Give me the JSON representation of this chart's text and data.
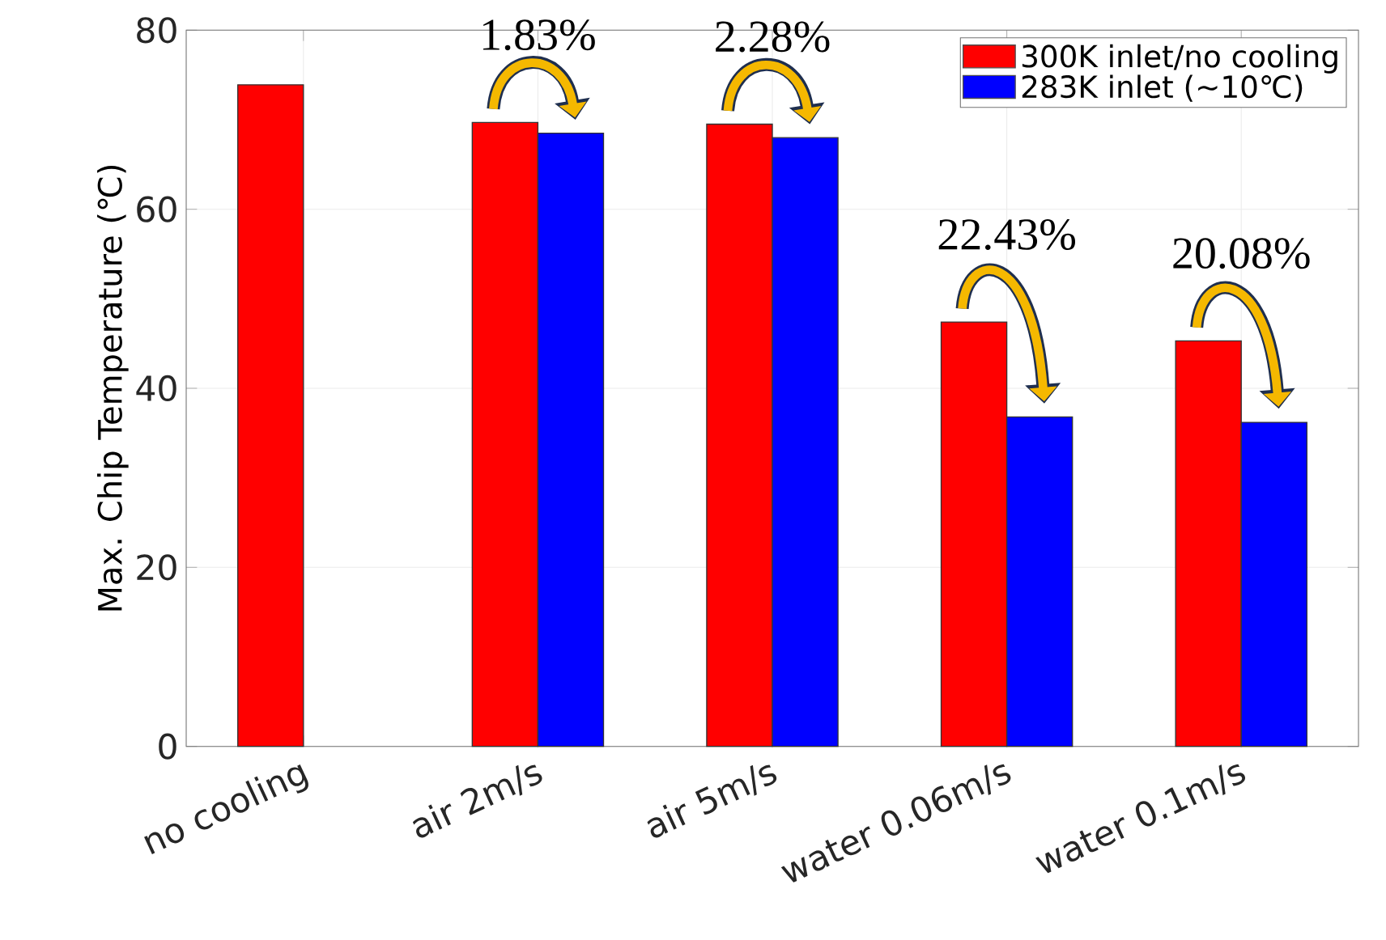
{
  "chart_data": {
    "type": "bar",
    "ylabel": "Max. Chip Temperature (℃)",
    "categories": [
      "no cooling",
      "air 2m/s",
      "air 5m/s",
      "water 0.06m/s",
      "water 0.1m/s"
    ],
    "series": [
      {
        "name": "300K inlet/no cooling",
        "color": "#ff0000",
        "values": [
          73.9,
          69.7,
          69.5,
          47.4,
          45.3
        ]
      },
      {
        "name": "283K inlet (~10℃)",
        "color": "#0000ff",
        "values": [
          null,
          68.5,
          68.0,
          36.8,
          36.2
        ]
      }
    ],
    "ylim": [
      0,
      80
    ],
    "yticks": [
      0,
      20,
      40,
      60,
      80
    ],
    "grid": true,
    "legend": "top right",
    "annotations": [
      "1.83%",
      "2.28%",
      "22.43%",
      "20.08%"
    ]
  }
}
